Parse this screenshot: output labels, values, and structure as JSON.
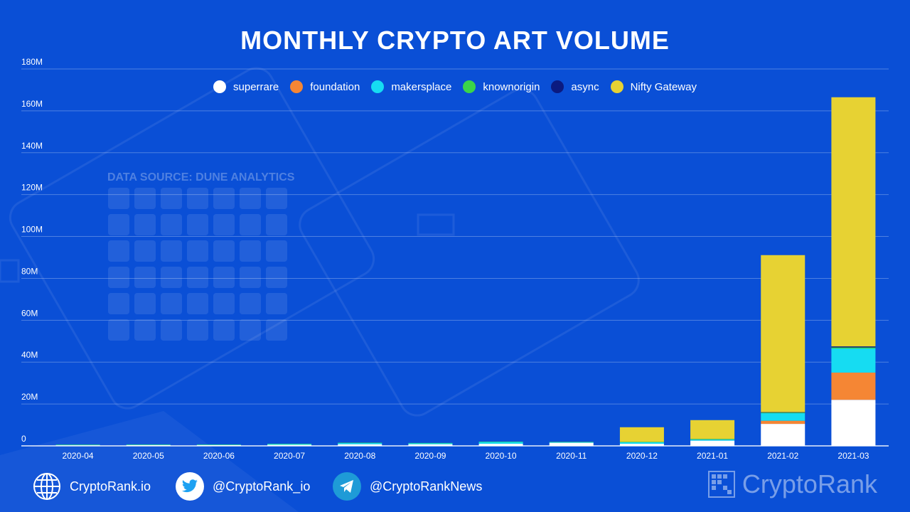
{
  "title": "MONTHLY CRYPTO ART VOLUME",
  "source_label": "DATA SOURCE: DUNE ANALYTICS",
  "colors": {
    "background": "#0A4FD6",
    "superrare": "#FFFFFF",
    "foundation": "#F58634",
    "makersplace": "#16DCF2",
    "knownorigin": "#3BD54A",
    "async": "#0B1A80",
    "Nifty Gateway": "#E7D233"
  },
  "chart_data": {
    "type": "bar",
    "stacked": true,
    "title": "MONTHLY CRYPTO ART VOLUME",
    "categories": [
      "2020-04",
      "2020-05",
      "2020-06",
      "2020-07",
      "2020-08",
      "2020-09",
      "2020-10",
      "2020-11",
      "2020-12",
      "2021-01",
      "2021-02",
      "2021-03"
    ],
    "series": [
      {
        "name": "superrare",
        "values": [
          0.3,
          0.4,
          0.4,
          0.5,
          0.8,
          0.8,
          1.0,
          1.5,
          1.0,
          2.5,
          10.5,
          22
        ]
      },
      {
        "name": "foundation",
        "values": [
          0,
          0,
          0,
          0,
          0,
          0,
          0,
          0,
          0,
          0,
          1.5,
          13
        ]
      },
      {
        "name": "makersplace",
        "values": [
          0.2,
          0.2,
          0.2,
          0.4,
          0.6,
          0.5,
          0.9,
          0.3,
          0.7,
          0.5,
          3.6,
          11.5
        ]
      },
      {
        "name": "knownorigin",
        "values": [
          0.1,
          0.1,
          0.1,
          0.1,
          0.1,
          0.1,
          0.1,
          0.1,
          0.2,
          0.3,
          0.3,
          0.5
        ]
      },
      {
        "name": "async",
        "values": [
          0,
          0,
          0,
          0,
          0,
          0,
          0,
          0,
          0,
          0,
          0.2,
          0.5
        ]
      },
      {
        "name": "Nifty Gateway",
        "values": [
          0,
          0,
          0,
          0,
          0,
          0,
          0,
          0,
          7.0,
          9.0,
          75,
          119
        ]
      }
    ],
    "ylim": [
      0,
      180
    ],
    "yticks": [
      0,
      20,
      40,
      60,
      80,
      100,
      120,
      140,
      160,
      180
    ],
    "ytick_labels": [
      "0",
      "20M",
      "40M",
      "60M",
      "80M",
      "100M",
      "120M",
      "140M",
      "160M",
      "180M"
    ],
    "xlabel": "",
    "ylabel": "",
    "grid": true,
    "legend_position": "top-center"
  },
  "footer": {
    "website": "CryptoRank.io",
    "twitter": "@CryptoRank_io",
    "telegram": "@CryptoRankNews",
    "brand": "CryptoRank"
  }
}
